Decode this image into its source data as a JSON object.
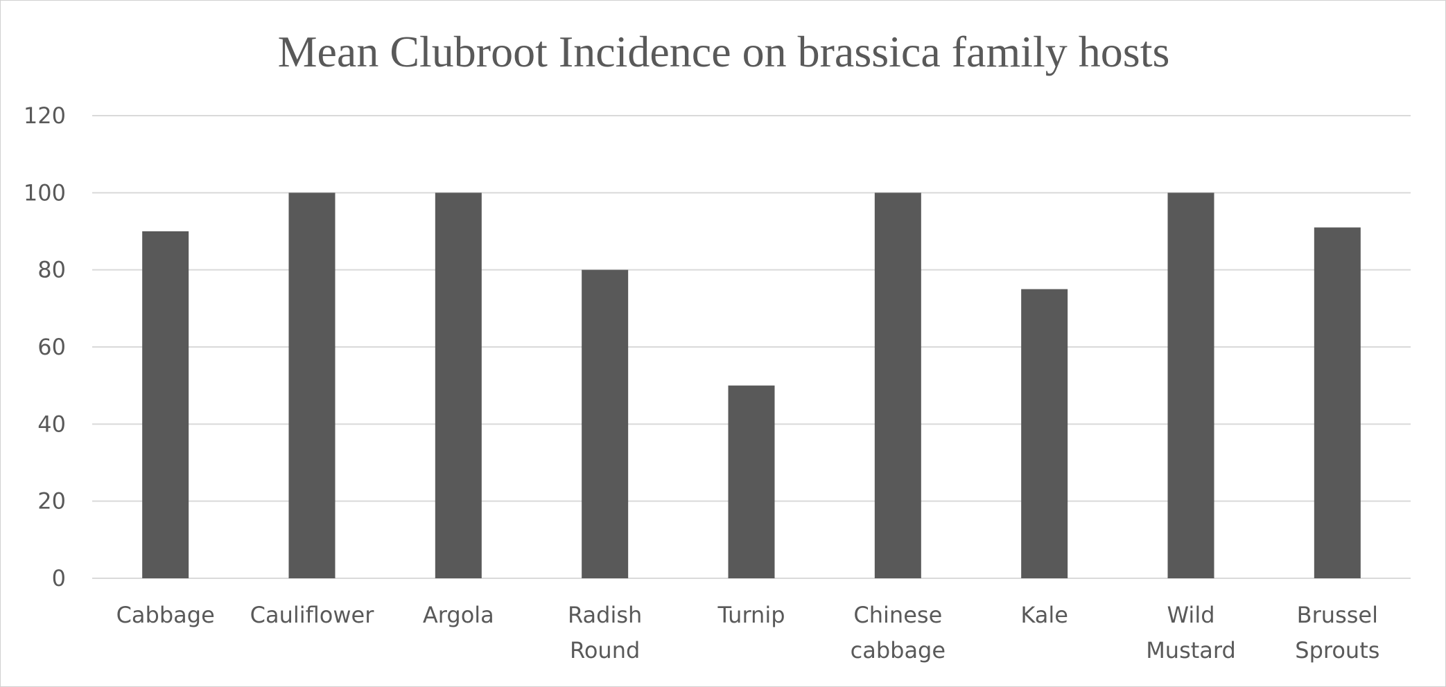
{
  "chart_data": {
    "type": "bar",
    "title": "Mean Clubroot Incidence on brassica family hosts",
    "xlabel": "",
    "ylabel": "",
    "categories": [
      [
        "Cabbage"
      ],
      [
        "Cauliflower"
      ],
      [
        "Argola"
      ],
      [
        "Radish",
        "Round"
      ],
      [
        "Turnip"
      ],
      [
        "Chinese",
        "cabbage"
      ],
      [
        "Kale"
      ],
      [
        "Wild",
        "Mustard"
      ],
      [
        "Brussel",
        "Sprouts"
      ]
    ],
    "values": [
      90,
      100,
      100,
      80,
      50,
      100,
      75,
      100,
      91
    ],
    "ylim": [
      0,
      120
    ],
    "yticks": [
      "0",
      "20",
      "40",
      "60",
      "80",
      "100",
      "120"
    ],
    "grid": true,
    "legend": "none",
    "bar_color": "#595959"
  }
}
